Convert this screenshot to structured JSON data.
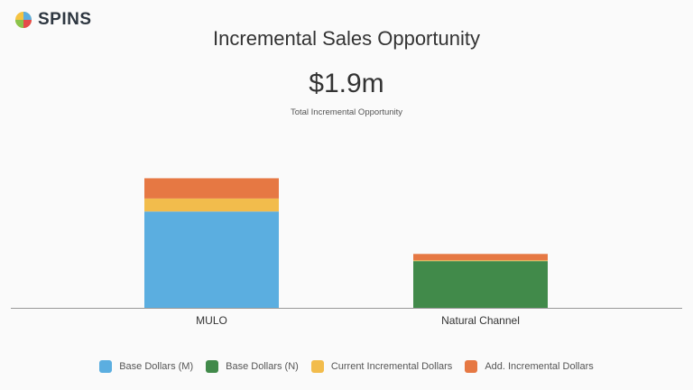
{
  "brand": {
    "name": "SPINS"
  },
  "chart_data": {
    "type": "bar",
    "stacked": true,
    "title": "Incremental Sales Opportunity",
    "kpi": {
      "value": "$1.9m",
      "label": "Total Incremental Opportunity"
    },
    "categories": [
      "MULO",
      "Natural Channel"
    ],
    "series": [
      {
        "name": "Base Dollars (M)",
        "color": "#5baee0",
        "values": [
          6.9,
          0
        ]
      },
      {
        "name": "Base Dollars (N)",
        "color": "#418a4a",
        "values": [
          0,
          3.35
        ]
      },
      {
        "name": "Current Incremental Dollars",
        "color": "#f2bc4c",
        "values": [
          0.93,
          0.06
        ]
      },
      {
        "name": "Add. Incremental Dollars",
        "color": "#e67843",
        "values": [
          1.45,
          0.45
        ]
      }
    ],
    "units": "$M (estimated)",
    "ylim": [
      0,
      12.8
    ],
    "grid": false,
    "legend": "bottom"
  }
}
